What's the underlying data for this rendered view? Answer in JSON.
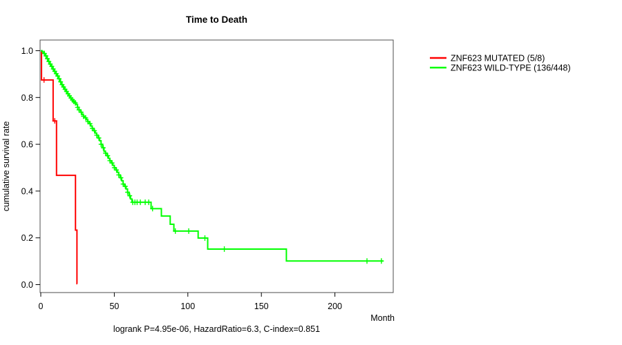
{
  "background": "#ffffff",
  "chart_data": {
    "type": "line",
    "subtype": "kaplan-meier-step-survival",
    "title": "Time to Death",
    "xlabel": "Month",
    "ylabel": "cumulative survival rate",
    "annotation": "logrank P=4.95e-06, HazardRatio=6.3, C-index=0.851",
    "xlim": [
      0,
      240
    ],
    "ylim": [
      0,
      1
    ],
    "xticks": [
      0,
      50,
      100,
      150,
      200
    ],
    "yticks": [
      0.0,
      0.2,
      0.4,
      0.6,
      0.8,
      1.0
    ],
    "grid": false,
    "legend_position": "outside-right",
    "box_color": "#4d4d4d",
    "series": [
      {
        "name": "ZNF623 MUTATED (5/8)",
        "key": "mutated",
        "color": "#ff0000",
        "steps": [
          [
            0,
            1.0
          ],
          [
            0.5,
            0.875
          ],
          [
            8.4,
            0.7
          ],
          [
            10.7,
            0.467
          ],
          [
            23.6,
            0.233
          ],
          [
            24.6,
            0.004
          ]
        ],
        "end_month": 24.9,
        "censor_months": [
          2.2,
          9.5
        ]
      },
      {
        "name": "ZNF623 WILD-TYPE (136/448)",
        "key": "wildtype",
        "color": "#00ff00",
        "steps": [
          [
            0,
            1.0
          ],
          [
            0.8,
            0.997
          ],
          [
            1.5,
            0.993
          ],
          [
            2,
            0.988
          ],
          [
            3,
            0.978
          ],
          [
            4,
            0.966
          ],
          [
            5,
            0.954
          ],
          [
            6,
            0.943
          ],
          [
            7,
            0.933
          ],
          [
            8,
            0.922
          ],
          [
            9,
            0.912
          ],
          [
            10,
            0.902
          ],
          [
            11,
            0.892
          ],
          [
            12,
            0.88
          ],
          [
            13,
            0.867
          ],
          [
            14,
            0.855
          ],
          [
            15,
            0.845
          ],
          [
            16,
            0.835
          ],
          [
            17,
            0.826
          ],
          [
            18,
            0.816
          ],
          [
            19,
            0.807
          ],
          [
            20,
            0.798
          ],
          [
            21,
            0.79
          ],
          [
            22,
            0.783
          ],
          [
            23,
            0.777
          ],
          [
            24,
            0.77
          ],
          [
            25,
            0.758
          ],
          [
            26,
            0.747
          ],
          [
            27,
            0.737
          ],
          [
            28,
            0.727
          ],
          [
            29,
            0.72
          ],
          [
            30,
            0.713
          ],
          [
            31,
            0.705
          ],
          [
            32,
            0.697
          ],
          [
            33,
            0.688
          ],
          [
            34,
            0.678
          ],
          [
            35,
            0.668
          ],
          [
            36,
            0.658
          ],
          [
            37,
            0.648
          ],
          [
            38,
            0.639
          ],
          [
            39,
            0.627
          ],
          [
            40,
            0.615
          ],
          [
            41,
            0.6
          ],
          [
            42,
            0.585
          ],
          [
            43,
            0.57
          ],
          [
            44,
            0.562
          ],
          [
            45,
            0.551
          ],
          [
            46,
            0.54
          ],
          [
            47,
            0.53
          ],
          [
            48,
            0.52
          ],
          [
            49,
            0.51
          ],
          [
            50,
            0.5
          ],
          [
            51,
            0.49
          ],
          [
            52,
            0.48
          ],
          [
            53,
            0.469
          ],
          [
            54,
            0.457
          ],
          [
            55,
            0.444
          ],
          [
            56,
            0.43
          ],
          [
            57,
            0.42
          ],
          [
            58,
            0.409
          ],
          [
            59,
            0.395
          ],
          [
            60,
            0.38
          ],
          [
            61,
            0.366
          ],
          [
            62,
            0.352
          ],
          [
            75,
            0.325
          ],
          [
            82,
            0.293
          ],
          [
            88,
            0.258
          ],
          [
            90.5,
            0.229
          ],
          [
            107,
            0.199
          ],
          [
            113.5,
            0.152
          ],
          [
            167,
            0.101
          ]
        ],
        "end_month": 233,
        "censor_months": [
          2.5,
          3.5,
          4.5,
          5.5,
          6.5,
          7.5,
          8.5,
          9.5,
          10.5,
          11.5,
          12.5,
          13.5,
          14.5,
          15.5,
          16.5,
          17.5,
          18.5,
          19.5,
          20.5,
          21.5,
          22.5,
          23.5,
          25,
          26,
          27.5,
          29,
          30.5,
          32,
          33.5,
          35,
          36.5,
          38,
          39.5,
          41,
          42.5,
          44,
          45.5,
          47,
          48.5,
          50,
          51.5,
          53,
          54.5,
          56,
          57.5,
          59,
          60.5,
          62.5,
          64,
          65.5,
          67.7,
          71,
          73.4,
          76,
          91.5,
          100.6,
          111.6,
          124.8,
          221.8,
          231.6
        ]
      }
    ]
  }
}
